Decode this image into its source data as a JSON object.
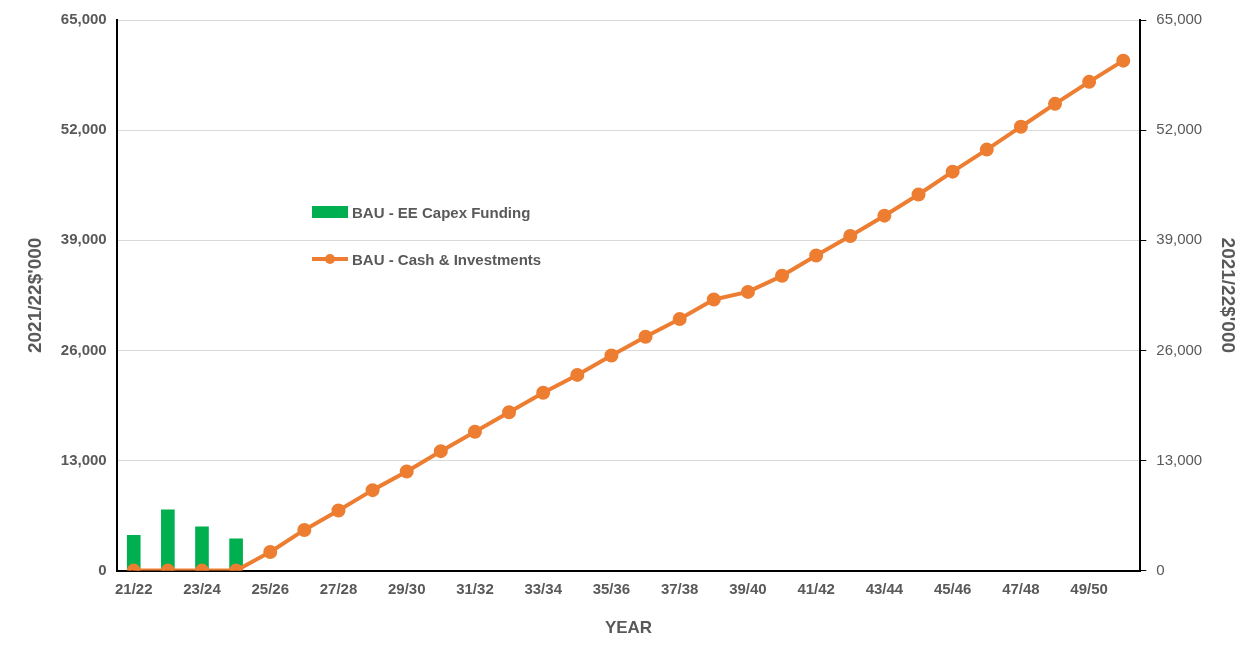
{
  "chart_data": {
    "type": "bar",
    "xlabel": "YEAR",
    "ylabel": "2021/22$'000",
    "y2label": "2021/22$'000",
    "categories": [
      "21/22",
      null,
      "23/24",
      null,
      "25/26",
      null,
      "27/28",
      null,
      "29/30",
      null,
      "31/32",
      null,
      "33/34",
      null,
      "35/36",
      null,
      "37/38",
      null,
      "39/40",
      null,
      "41/42",
      null,
      "43/44",
      null,
      "45/46",
      null,
      "47/48",
      null,
      "49/50",
      null
    ],
    "series": [
      {
        "name": "BAU - EE Capex Funding",
        "color": "#00b050",
        "values": [
          4200,
          7200,
          5200,
          3800,
          null,
          null,
          null,
          null,
          null,
          null,
          null,
          null,
          null,
          null,
          null,
          null,
          null,
          null,
          null,
          null,
          null,
          null,
          null,
          null,
          null,
          null,
          null,
          null,
          null,
          null
        ]
      },
      {
        "name": "BAU - Cash & Investments",
        "type": "line",
        "color": "#ed7d31",
        "values": [
          0,
          0,
          0,
          0,
          2200,
          4800,
          7100,
          9500,
          11700,
          14100,
          16400,
          18700,
          21000,
          23100,
          25400,
          27600,
          29700,
          32000,
          32900,
          34800,
          37200,
          39500,
          41900,
          44400,
          47100,
          49700,
          52400,
          55100,
          57700,
          60200
        ]
      }
    ],
    "ylim": [
      0,
      65000
    ],
    "yticks": [
      {
        "value": 0,
        "label": "0"
      },
      {
        "value": 13000,
        "label": "13,000"
      },
      {
        "value": 26000,
        "label": "26,000"
      },
      {
        "value": 39000,
        "label": "39,000"
      },
      {
        "value": 52000,
        "label": "52,000"
      },
      {
        "value": 65000,
        "label": "65,000"
      }
    ],
    "y2lim": [
      0,
      65000
    ],
    "y2ticks": [
      {
        "value": 0,
        "label": "0"
      },
      {
        "value": 13000,
        "label": "13,000"
      },
      {
        "value": 26000,
        "label": "26,000"
      },
      {
        "value": 39000,
        "label": "39,000"
      },
      {
        "value": 52000,
        "label": "52,000"
      },
      {
        "value": 65000,
        "label": "65,000"
      }
    ],
    "grid": "y",
    "legend": "top left",
    "marker": "circle",
    "line_style": "solid"
  }
}
